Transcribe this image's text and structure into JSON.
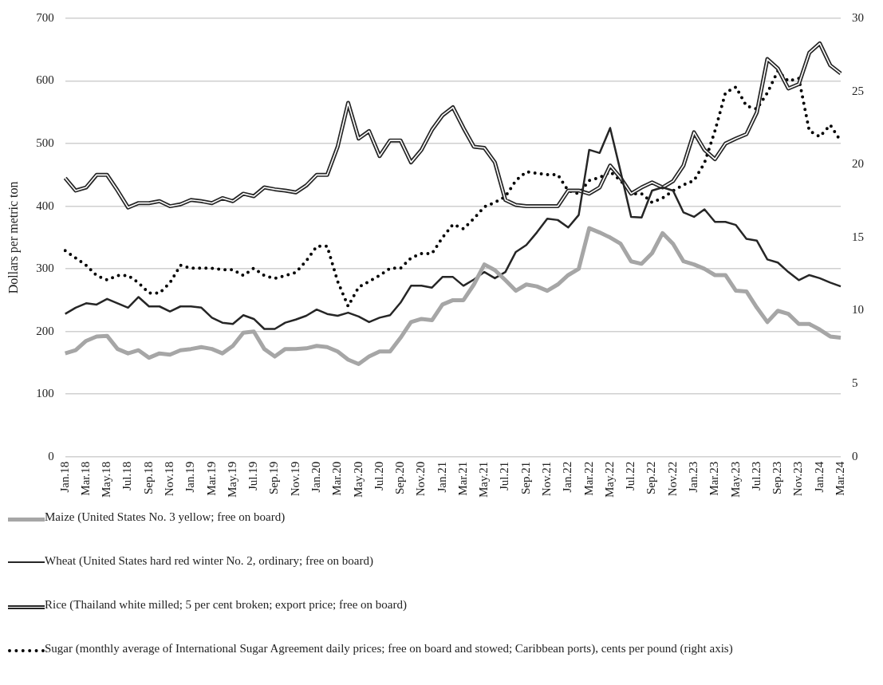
{
  "chart_data": {
    "type": "line",
    "ylabel": "Dollars per metric ton",
    "categories": [
      "Jan.18",
      null,
      "Mar.18",
      null,
      "May.18",
      null,
      "Jul.18",
      null,
      "Sep.18",
      null,
      "Nov.18",
      null,
      "Jan.19",
      null,
      "Mar.19",
      null,
      "May.19",
      null,
      "Jul.19",
      null,
      "Sep.19",
      null,
      "Nov.19",
      null,
      "Jan.20",
      null,
      "Mar.20",
      null,
      "May.20",
      null,
      "Jul.20",
      null,
      "Sep.20",
      null,
      "Nov.20",
      null,
      "Jan.21",
      null,
      "Mar.21",
      null,
      "May.21",
      null,
      "Jul.21",
      null,
      "Sep.21",
      null,
      "Nov.21",
      null,
      "Jan.22",
      null,
      "Mar.22",
      null,
      "May.22",
      null,
      "Jul.22",
      null,
      "Sep.22",
      null,
      "Nov.22",
      null,
      "Jan.23",
      null,
      "Mar.23",
      null,
      "May.23",
      null,
      "Jul.23",
      null,
      "Sep.23",
      null,
      "Nov.23",
      null,
      "Jan.24",
      null,
      "Mar.24"
    ],
    "series": [
      {
        "name": "Maize (United States  No. 3 yellow; free on board)",
        "color": "#a6a6a6",
        "line_style": "solid",
        "values": [
          165,
          170,
          185,
          192,
          193,
          172,
          165,
          170,
          158,
          165,
          163,
          170,
          172,
          175,
          172,
          165,
          177,
          198,
          200,
          172,
          160,
          172,
          172,
          173,
          177,
          175,
          168,
          155,
          148,
          160,
          168,
          168,
          190,
          215,
          220,
          218,
          243,
          250,
          250,
          275,
          307,
          298,
          282,
          265,
          275,
          272,
          265,
          275,
          290,
          300,
          365,
          358,
          350,
          340,
          312,
          308,
          325,
          357,
          340,
          312,
          307,
          300,
          290,
          290,
          265,
          264,
          238,
          215,
          233,
          228,
          212,
          212,
          203,
          192,
          190
        ]
      },
      {
        "name": "Wheat (United States hard red winter No. 2, ordinary; free on board)",
        "color": "#262626",
        "line_style": "solid",
        "values": [
          228,
          238,
          245,
          243,
          252,
          245,
          238,
          255,
          240,
          240,
          232,
          240,
          240,
          238,
          222,
          214,
          212,
          226,
          220,
          204,
          204,
          214,
          219,
          225,
          235,
          228,
          225,
          230,
          224,
          215,
          222,
          226,
          246,
          273,
          273,
          270,
          287,
          287,
          273,
          283,
          295,
          285,
          295,
          327,
          338,
          358,
          380,
          378,
          366,
          386,
          490,
          485,
          525,
          455,
          383,
          382,
          425,
          430,
          425,
          390,
          383,
          395,
          375,
          375,
          370,
          348,
          345,
          315,
          310,
          295,
          282,
          290,
          285,
          278,
          272
        ]
      },
      {
        "name": "Rice (Thailand  white milled;  5 per cent broken; export price; free on board)",
        "color": "#262626",
        "line_style": "solid",
        "values": [
          445,
          425,
          430,
          450,
          450,
          425,
          398,
          405,
          405,
          408,
          400,
          403,
          410,
          408,
          405,
          413,
          408,
          420,
          416,
          430,
          427,
          425,
          422,
          433,
          450,
          450,
          495,
          565,
          508,
          520,
          480,
          505,
          505,
          470,
          490,
          522,
          545,
          558,
          525,
          495,
          493,
          470,
          410,
          402,
          400,
          400,
          400,
          400,
          425,
          425,
          420,
          430,
          465,
          445,
          420,
          430,
          438,
          430,
          440,
          465,
          518,
          490,
          475,
          500,
          508,
          515,
          550,
          635,
          620,
          588,
          595,
          645,
          660,
          625,
          612
        ]
      },
      {
        "name": "Sugar (monthly average of International Sugar Agreement daily prices; free on board and stowed; Caribbean ports), cents per pound (right axis)",
        "color": "#000000",
        "line_style": "dotted",
        "axis": "y2",
        "values": [
          14.1,
          13.6,
          13.1,
          12.4,
          12.1,
          12.4,
          12.4,
          11.9,
          11.2,
          11.2,
          11.9,
          13.1,
          12.9,
          12.9,
          12.9,
          12.8,
          12.8,
          12.4,
          12.9,
          12.4,
          12.2,
          12.4,
          12.6,
          13.4,
          14.4,
          14.4,
          12.0,
          10.3,
          11.6,
          12.0,
          12.4,
          12.9,
          12.9,
          13.6,
          13.9,
          13.9,
          15.0,
          15.9,
          15.6,
          16.3,
          17.1,
          17.4,
          17.8,
          18.9,
          19.5,
          19.4,
          19.3,
          19.3,
          18.2,
          18.0,
          18.9,
          19.1,
          19.5,
          18.9,
          18.0,
          18.0,
          17.4,
          17.7,
          18.2,
          18.6,
          18.9,
          20.1,
          22.3,
          24.9,
          25.3,
          24.0,
          23.8,
          24.9,
          26.4,
          25.7,
          25.9,
          22.3,
          21.9,
          22.7,
          21.6
        ]
      }
    ],
    "ylim": [
      0,
      700
    ],
    "yticks": [
      0,
      100,
      200,
      300,
      400,
      500,
      600,
      700
    ],
    "y2lim": [
      0,
      30
    ],
    "y2ticks": [
      0,
      5,
      10,
      15,
      20,
      25,
      30
    ],
    "grid": "y",
    "legend": "bottom",
    "marker": "none"
  }
}
